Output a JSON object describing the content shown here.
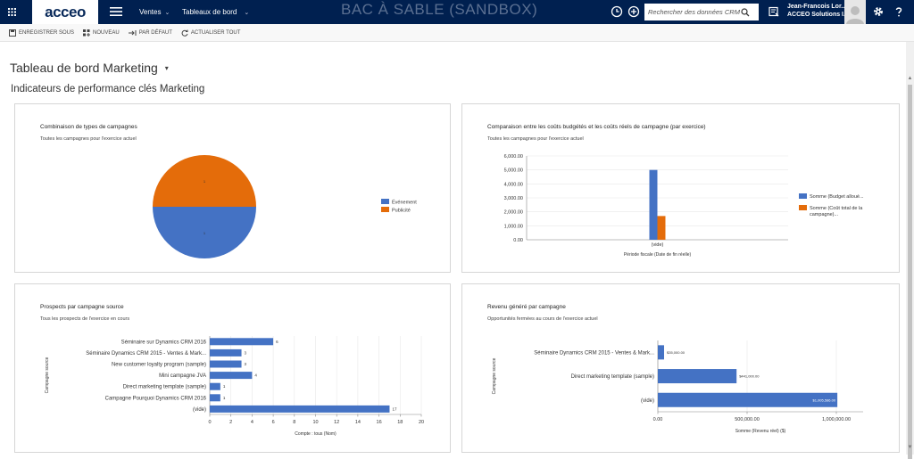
{
  "app": {
    "logo": "acceo",
    "area": "Ventes",
    "section": "Tableaux de bord",
    "environment_banner": "BAC À SABLE (SANDBOX)",
    "search_placeholder": "Rechercher des données CRM",
    "user_name": "Jean-Francois Lor...",
    "user_org": "ACCEO Solutions I..."
  },
  "commands": [
    {
      "label": "ENREGISTRER SOUS",
      "icon": "save-icon"
    },
    {
      "label": "NOUVEAU",
      "icon": "new-dashboard-icon"
    },
    {
      "label": "PAR DÉFAUT",
      "icon": "set-default-icon"
    },
    {
      "label": "ACTUALISER TOUT",
      "icon": "refresh-icon"
    }
  ],
  "page": {
    "title": "Tableau de bord Marketing",
    "section": "Indicateurs de performance clés Marketing"
  },
  "colors": {
    "blue": "#4472c4",
    "orange": "#e46c0a",
    "navbar": "#002050"
  },
  "chart_data": [
    {
      "type": "pie",
      "title": "Combinaison de types de campagnes",
      "subtitle": "Toutes les campagnes pour l'exercice actuel",
      "categories": [
        "Événement",
        "Publicité"
      ],
      "values": [
        1,
        1
      ],
      "colors": [
        "#4472c4",
        "#e46c0a"
      ],
      "legend": "right"
    },
    {
      "type": "bar",
      "title": "Comparaison entre les coûts budgétés et les coûts réels de campagne (par exercice)",
      "subtitle": "Toutes les campagnes pour l'exercice actuel",
      "categories": [
        "(vide)"
      ],
      "series": [
        {
          "name": "Somme (Budget alloué...",
          "values": [
            5000
          ],
          "color": "#4472c4"
        },
        {
          "name": "Somme (Coût total de la campagne)...",
          "values": [
            1700
          ],
          "color": "#e46c0a"
        }
      ],
      "xlabel": "Période fiscale (Date de fin réelle)",
      "ylabel": "",
      "yticks": [
        "0.00",
        "1,000.00",
        "2,000.00",
        "3,000.00",
        "4,000.00",
        "5,000.00",
        "6,000.00"
      ],
      "ylim": [
        0,
        6000
      ],
      "legend": "right"
    },
    {
      "type": "bar",
      "orientation": "horizontal",
      "title": "Prospects par campagne source",
      "subtitle": "Tous les prospects de l'exercice en cours",
      "categories": [
        "Séminaire sur Dynamics CRM 2016",
        "Séminaire Dynamics CRM 2015 - Ventes & Mark...",
        "New customer loyalty program (sample)",
        "Mini campagne JVA",
        "Direct marketing template (sample)",
        "Campagne Pourquoi Dynamics CRM 2016",
        "(vide)"
      ],
      "values": [
        6,
        3,
        3,
        4,
        1,
        1,
        17
      ],
      "value_labels": [
        "6",
        "3",
        "3",
        "4",
        "1",
        "1",
        "17"
      ],
      "xlabel": "Compte : tous (Nom)",
      "ylabel": "Campagne source",
      "xticks": [
        "0",
        "2",
        "4",
        "6",
        "8",
        "10",
        "12",
        "14",
        "16",
        "18",
        "20"
      ],
      "xlim": [
        0,
        20
      ],
      "color": "#4472c4"
    },
    {
      "type": "bar",
      "orientation": "horizontal",
      "title": "Revenu généré par campagne",
      "subtitle": "Opportunités fermées au cours de l'exercice actuel",
      "categories": [
        "Séminaire Dynamics CRM 2015 - Ventes & Mark...",
        "Direct marketing template (sample)",
        "(vide)"
      ],
      "values": [
        35000,
        441000,
        1005586
      ],
      "value_labels": [
        "$35,000.00",
        "$441,000.00",
        "$1,005,586.00"
      ],
      "xlabel": "Somme (Revenu réel) ($)",
      "ylabel": "Campagne source",
      "xticks": [
        "0.00",
        "500,000.00",
        "1,000,000.00"
      ],
      "xlim": [
        0,
        1150000
      ],
      "color": "#4472c4"
    }
  ]
}
